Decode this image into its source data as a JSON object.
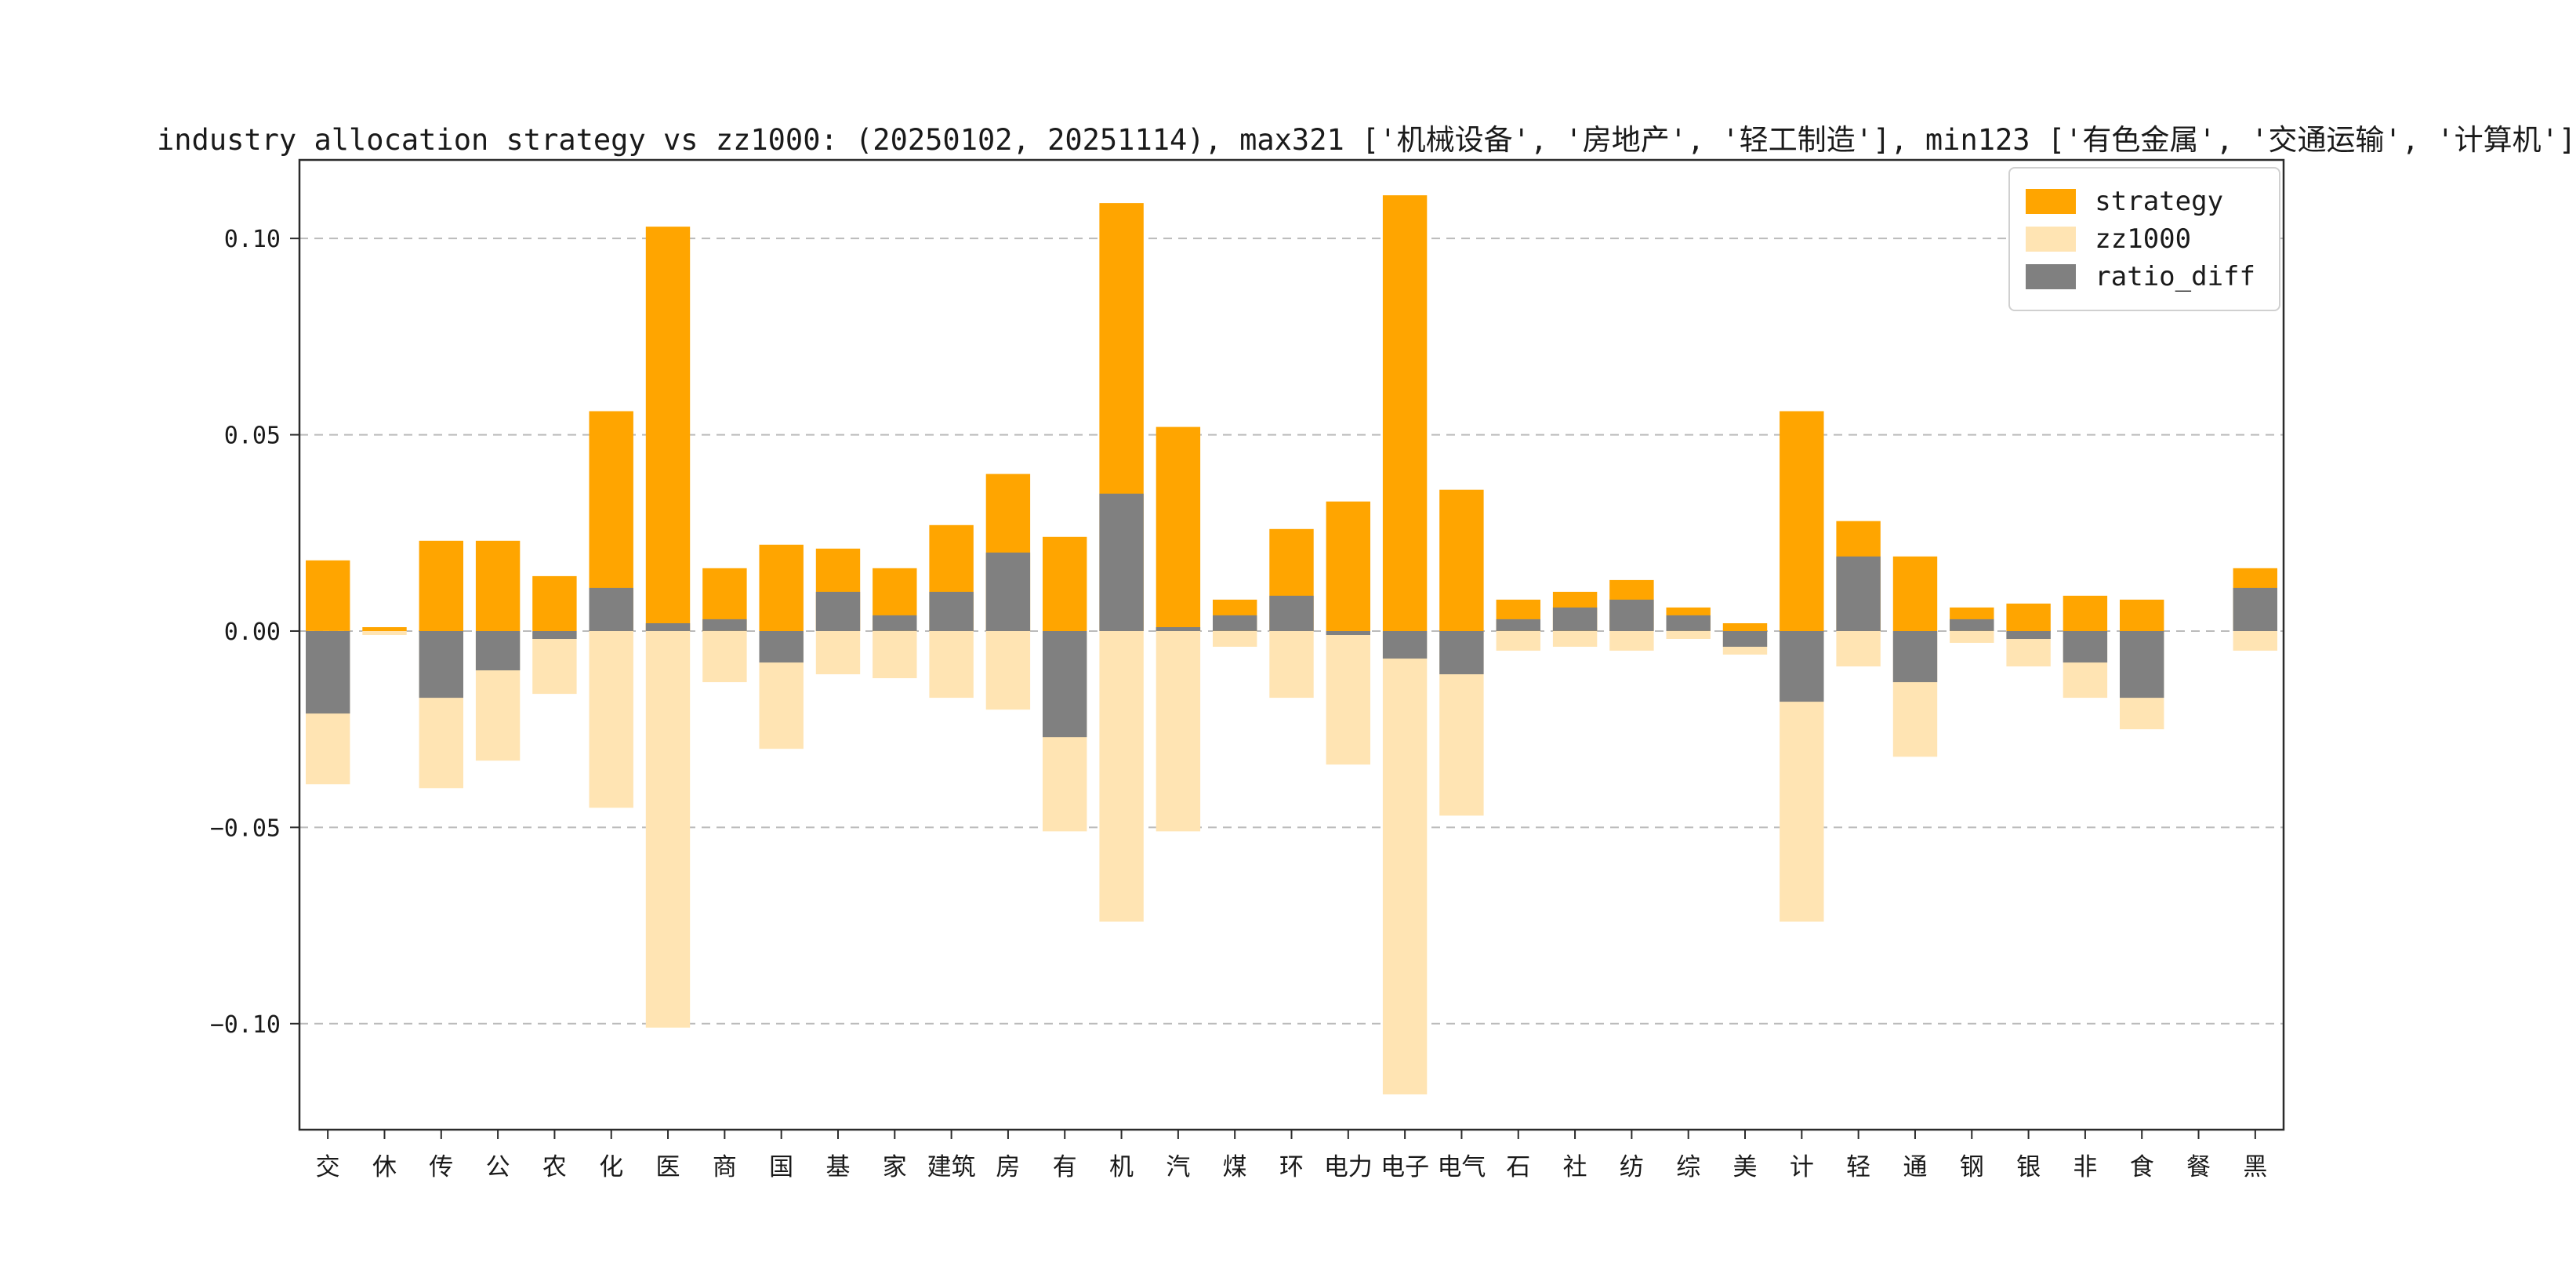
{
  "chart_data": {
    "type": "bar",
    "title": "industry allocation strategy vs zz1000: (20250102, 20251114), max321 ['机械设备', '房地产', '轻工制造'], min123 ['有色金属', '交通运输', '计算机']",
    "categories": [
      "交",
      "休",
      "传",
      "公",
      "农",
      "化",
      "医",
      "商",
      "国",
      "基",
      "家",
      "建筑",
      "房",
      "有",
      "机",
      "汽",
      "煤",
      "环",
      "电力",
      "电子",
      "电气",
      "石",
      "社",
      "纺",
      "综",
      "美",
      "计",
      "轻",
      "通",
      "钢",
      "银",
      "非",
      "食",
      "餐",
      "黑"
    ],
    "series": [
      {
        "name": "strategy",
        "color": "#FFA500",
        "values": [
          0.018,
          0.001,
          0.023,
          0.023,
          0.014,
          0.056,
          0.103,
          0.016,
          0.022,
          0.021,
          0.016,
          0.027,
          0.04,
          0.024,
          0.109,
          0.052,
          0.008,
          0.026,
          0.033,
          0.111,
          0.036,
          0.008,
          0.01,
          0.013,
          0.006,
          0.002,
          0.056,
          0.028,
          0.019,
          0.006,
          0.007,
          0.009,
          0.008,
          0.0,
          0.016
        ]
      },
      {
        "name": "zz1000",
        "color": "#FFE4B3",
        "values": [
          -0.039,
          -0.001,
          -0.04,
          -0.033,
          -0.016,
          -0.045,
          -0.101,
          -0.013,
          -0.03,
          -0.011,
          -0.012,
          -0.017,
          -0.02,
          -0.051,
          -0.074,
          -0.051,
          -0.004,
          -0.017,
          -0.034,
          -0.118,
          -0.047,
          -0.005,
          -0.004,
          -0.005,
          -0.002,
          -0.006,
          -0.074,
          -0.009,
          -0.032,
          -0.003,
          -0.009,
          -0.017,
          -0.025,
          0.0,
          -0.005
        ]
      },
      {
        "name": "ratio_diff",
        "color": "#808080",
        "values": [
          -0.021,
          0.0,
          -0.017,
          -0.01,
          -0.002,
          0.011,
          0.002,
          0.003,
          -0.008,
          0.01,
          0.004,
          0.01,
          0.02,
          -0.027,
          0.035,
          0.001,
          0.004,
          0.009,
          -0.001,
          -0.007,
          -0.011,
          0.003,
          0.006,
          0.008,
          0.004,
          -0.004,
          -0.018,
          0.019,
          -0.013,
          0.003,
          -0.002,
          -0.008,
          -0.017,
          0.0,
          0.011
        ]
      }
    ],
    "ylim": [
      -0.127,
      0.12
    ],
    "yticks": [
      {
        "value": 0.1,
        "label": "0.10"
      },
      {
        "value": 0.05,
        "label": "0.05"
      },
      {
        "value": 0.0,
        "label": "0.00"
      },
      {
        "value": -0.05,
        "label": "−0.05"
      },
      {
        "value": -0.1,
        "label": "−0.10"
      }
    ],
    "grid": "horizontal-dashed",
    "legend_position": "upper right"
  }
}
